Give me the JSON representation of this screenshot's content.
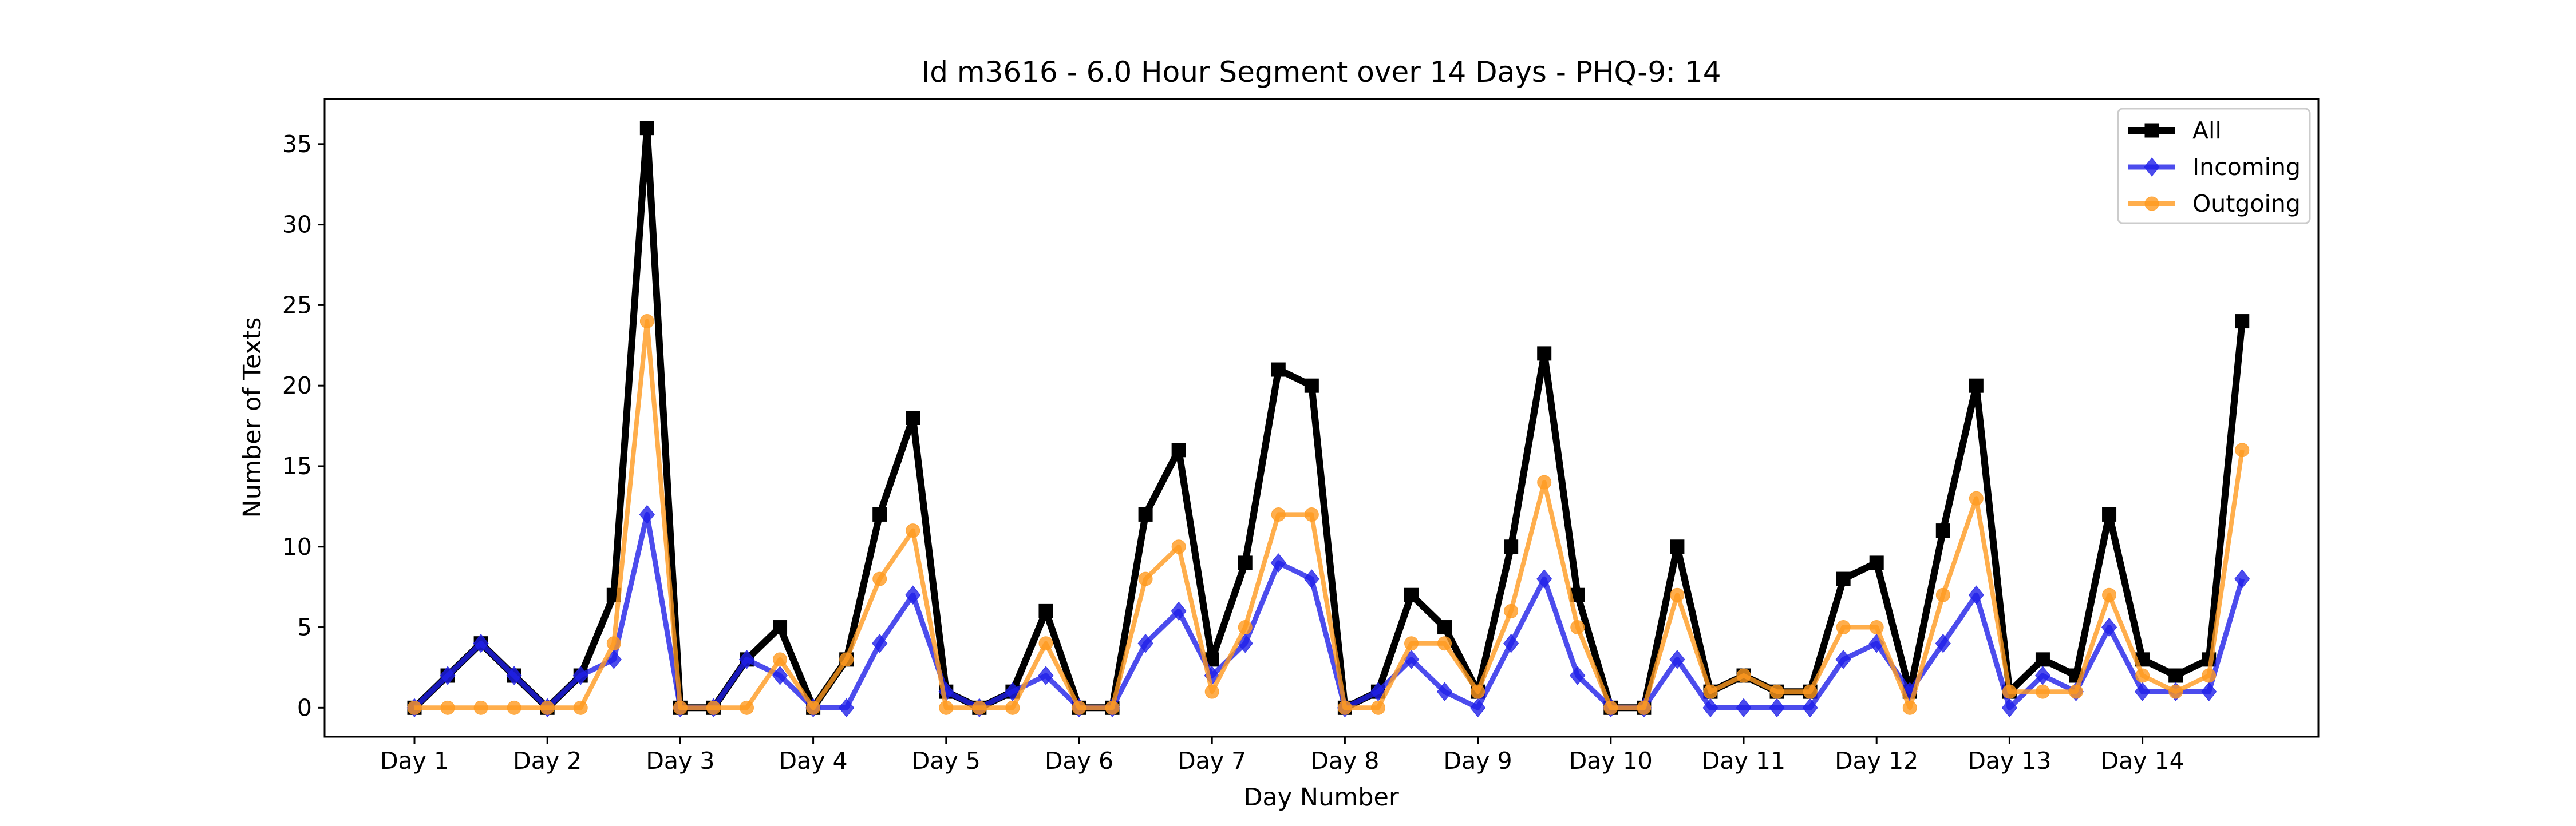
{
  "chart_data": {
    "type": "line",
    "title": "Id m3616 - 6.0 Hour Segment over 14 Days - PHQ-9: 14",
    "xlabel": "Day Number",
    "ylabel": "Number of Texts",
    "x_tick_labels": [
      "Day 1",
      "Day 2",
      "Day 3",
      "Day 4",
      "Day 5",
      "Day 6",
      "Day 7",
      "Day 8",
      "Day 9",
      "Day 10",
      "Day 11",
      "Day 12",
      "Day 13",
      "Day 14"
    ],
    "y_ticks": [
      0,
      5,
      10,
      15,
      20,
      25,
      30,
      35
    ],
    "ylim": [
      -1.8,
      37.8
    ],
    "legend_position": "upper right",
    "grid": false,
    "series": [
      {
        "name": "All",
        "color": "#000000",
        "marker": "square",
        "values": [
          0,
          2,
          4,
          2,
          0,
          2,
          7,
          36,
          0,
          0,
          3,
          5,
          0,
          3,
          12,
          18,
          1,
          0,
          1,
          6,
          0,
          0,
          12,
          16,
          3,
          9,
          21,
          20,
          0,
          1,
          7,
          5,
          1,
          10,
          22,
          7,
          0,
          0,
          10,
          1,
          2,
          1,
          1,
          8,
          9,
          1,
          11,
          20,
          1,
          3,
          2,
          12,
          3,
          2,
          3,
          24
        ]
      },
      {
        "name": "Incoming",
        "color": "#1f1fe8",
        "marker": "diamond",
        "values": [
          0,
          2,
          4,
          2,
          0,
          2,
          3,
          12,
          0,
          0,
          3,
          2,
          0,
          0,
          4,
          7,
          1,
          0,
          1,
          2,
          0,
          0,
          4,
          6,
          2,
          4,
          9,
          8,
          0,
          1,
          3,
          1,
          0,
          4,
          8,
          2,
          0,
          0,
          3,
          0,
          0,
          0,
          0,
          3,
          4,
          1,
          4,
          7,
          0,
          2,
          1,
          5,
          1,
          1,
          1,
          8
        ]
      },
      {
        "name": "Outgoing",
        "color": "#ff9a1f",
        "marker": "circle",
        "values": [
          0,
          0,
          0,
          0,
          0,
          0,
          4,
          24,
          0,
          0,
          0,
          3,
          0,
          3,
          8,
          11,
          0,
          0,
          0,
          4,
          0,
          0,
          8,
          10,
          1,
          5,
          12,
          12,
          0,
          0,
          4,
          4,
          1,
          6,
          14,
          5,
          0,
          0,
          7,
          1,
          2,
          1,
          1,
          5,
          5,
          0,
          7,
          13,
          1,
          1,
          1,
          7,
          2,
          1,
          2,
          16
        ]
      }
    ]
  }
}
